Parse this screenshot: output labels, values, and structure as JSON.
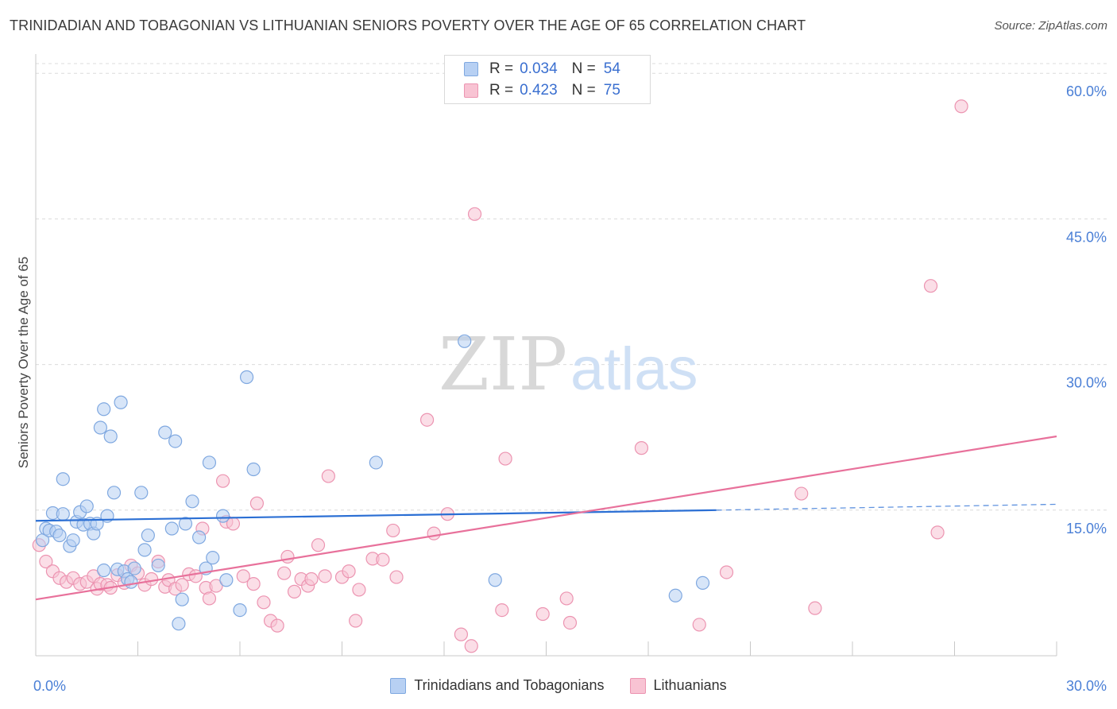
{
  "header": {
    "title": "TRINIDADIAN AND TOBAGONIAN VS LITHUANIAN SENIORS POVERTY OVER THE AGE OF 65 CORRELATION CHART",
    "source": "Source: ZipAtlas.com"
  },
  "watermark": {
    "zip": "ZIP",
    "atlas": "atlas"
  },
  "legend_top": {
    "rows": [
      {
        "r_label": "R =",
        "r_value": "0.034",
        "n_label": "N =",
        "n_value": "54"
      },
      {
        "r_label": "R =",
        "r_value": "0.423",
        "n_label": "N =",
        "n_value": "75"
      }
    ]
  },
  "colors": {
    "blue_fill": "#b7d0f3",
    "blue_stroke": "#7fa8e0",
    "blue_line": "#2b6fd4",
    "pink_fill": "#f8c3d3",
    "pink_stroke": "#ec94b1",
    "pink_line": "#e8719b",
    "tick_label": "#4a7fd6",
    "grid": "#dcdcdc"
  },
  "chart_data": {
    "type": "scatter",
    "title": "TRINIDADIAN AND TOBAGONIAN VS LITHUANIAN SENIORS POVERTY OVER THE AGE OF 65 CORRELATION CHART",
    "xlabel": "",
    "ylabel": "Seniors Poverty Over the Age of 65",
    "xlim": [
      0,
      30
    ],
    "ylim": [
      0,
      61
    ],
    "x_ticks": [
      0,
      3,
      6,
      9,
      12,
      15,
      18,
      21,
      24,
      27,
      30
    ],
    "x_tick_labels": [
      {
        "x": 0,
        "label": "0.0%"
      },
      {
        "x": 30,
        "label": "30.0%"
      }
    ],
    "y_ticks": [
      15,
      30,
      45,
      60
    ],
    "y_tick_labels": [
      "15.0%",
      "30.0%",
      "45.0%",
      "60.0%"
    ],
    "grid": true,
    "legend_placement": "bottom-center",
    "series": [
      {
        "name": "Trinidadians and Tobagonians",
        "r": 0.034,
        "n": 54,
        "trend": {
          "x_start": 0,
          "y_start": 13.9,
          "x_solid_end": 20.0,
          "y_solid_end": 15.0,
          "x_dash_end": 30,
          "y_dash_end": 15.6
        },
        "points": [
          [
            0.2,
            11.9
          ],
          [
            0.3,
            13.1
          ],
          [
            0.4,
            12.9
          ],
          [
            0.5,
            14.7
          ],
          [
            0.6,
            12.8
          ],
          [
            0.7,
            12.4
          ],
          [
            0.8,
            14.6
          ],
          [
            0.8,
            18.2
          ],
          [
            1.0,
            11.3
          ],
          [
            1.1,
            11.9
          ],
          [
            1.2,
            13.8
          ],
          [
            1.3,
            14.8
          ],
          [
            1.4,
            13.5
          ],
          [
            1.5,
            15.4
          ],
          [
            1.6,
            13.6
          ],
          [
            1.7,
            12.6
          ],
          [
            1.8,
            13.6
          ],
          [
            1.9,
            23.5
          ],
          [
            2.0,
            8.8
          ],
          [
            2.0,
            25.4
          ],
          [
            2.1,
            14.4
          ],
          [
            2.2,
            22.6
          ],
          [
            2.3,
            16.8
          ],
          [
            2.4,
            8.9
          ],
          [
            2.5,
            26.1
          ],
          [
            2.6,
            8.7
          ],
          [
            2.7,
            7.9
          ],
          [
            2.8,
            7.6
          ],
          [
            2.9,
            9.0
          ],
          [
            3.1,
            16.8
          ],
          [
            3.2,
            10.9
          ],
          [
            3.3,
            12.4
          ],
          [
            3.6,
            9.3
          ],
          [
            3.8,
            23.0
          ],
          [
            4.0,
            13.1
          ],
          [
            4.1,
            22.1
          ],
          [
            4.2,
            3.3
          ],
          [
            4.3,
            5.8
          ],
          [
            4.4,
            13.6
          ],
          [
            4.6,
            15.9
          ],
          [
            4.8,
            12.2
          ],
          [
            5.0,
            9.0
          ],
          [
            5.1,
            19.9
          ],
          [
            5.2,
            10.1
          ],
          [
            5.5,
            14.4
          ],
          [
            5.6,
            7.8
          ],
          [
            6.0,
            4.7
          ],
          [
            6.2,
            28.7
          ],
          [
            6.4,
            19.2
          ],
          [
            10.0,
            19.9
          ],
          [
            12.6,
            32.4
          ],
          [
            13.5,
            7.8
          ],
          [
            18.8,
            6.2
          ],
          [
            19.6,
            7.5
          ]
        ]
      },
      {
        "name": "Lithuanians",
        "r": 0.423,
        "n": 75,
        "trend": {
          "x_start": 0,
          "y_start": 5.8,
          "x_end": 30,
          "y_end": 22.6
        },
        "points": [
          [
            0.1,
            11.4
          ],
          [
            0.3,
            9.7
          ],
          [
            0.5,
            8.7
          ],
          [
            0.7,
            8.0
          ],
          [
            0.9,
            7.6
          ],
          [
            1.1,
            8.0
          ],
          [
            1.3,
            7.4
          ],
          [
            1.5,
            7.6
          ],
          [
            1.7,
            8.2
          ],
          [
            1.8,
            6.9
          ],
          [
            1.9,
            7.4
          ],
          [
            2.1,
            7.3
          ],
          [
            2.2,
            7.0
          ],
          [
            2.4,
            8.3
          ],
          [
            2.6,
            7.5
          ],
          [
            2.8,
            9.3
          ],
          [
            3.0,
            8.5
          ],
          [
            3.2,
            7.3
          ],
          [
            3.4,
            7.9
          ],
          [
            3.6,
            9.7
          ],
          [
            3.8,
            7.1
          ],
          [
            3.9,
            7.8
          ],
          [
            4.1,
            6.9
          ],
          [
            4.3,
            7.3
          ],
          [
            4.5,
            8.4
          ],
          [
            4.7,
            8.2
          ],
          [
            4.9,
            13.1
          ],
          [
            5.0,
            7.0
          ],
          [
            5.1,
            5.9
          ],
          [
            5.3,
            7.2
          ],
          [
            5.5,
            18.0
          ],
          [
            5.6,
            13.8
          ],
          [
            5.8,
            13.6
          ],
          [
            6.1,
            8.2
          ],
          [
            6.4,
            7.4
          ],
          [
            6.5,
            15.7
          ],
          [
            6.7,
            5.5
          ],
          [
            6.9,
            3.6
          ],
          [
            7.1,
            3.1
          ],
          [
            7.3,
            8.5
          ],
          [
            7.4,
            10.2
          ],
          [
            7.6,
            6.6
          ],
          [
            7.8,
            7.9
          ],
          [
            8.0,
            7.2
          ],
          [
            8.1,
            7.9
          ],
          [
            8.3,
            11.4
          ],
          [
            8.5,
            8.2
          ],
          [
            8.6,
            18.5
          ],
          [
            9.0,
            8.1
          ],
          [
            9.2,
            8.7
          ],
          [
            9.4,
            3.6
          ],
          [
            9.5,
            6.8
          ],
          [
            9.9,
            10.0
          ],
          [
            10.2,
            9.9
          ],
          [
            10.5,
            12.9
          ],
          [
            10.6,
            8.1
          ],
          [
            11.5,
            24.3
          ],
          [
            11.7,
            12.6
          ],
          [
            12.1,
            14.6
          ],
          [
            12.5,
            2.2
          ],
          [
            12.8,
            1.0
          ],
          [
            12.9,
            45.5
          ],
          [
            13.7,
            4.7
          ],
          [
            13.8,
            20.3
          ],
          [
            14.9,
            4.3
          ],
          [
            15.6,
            5.9
          ],
          [
            15.7,
            3.4
          ],
          [
            17.8,
            21.4
          ],
          [
            19.5,
            3.2
          ],
          [
            20.3,
            8.6
          ],
          [
            22.5,
            16.7
          ],
          [
            22.9,
            4.9
          ],
          [
            26.3,
            38.1
          ],
          [
            26.5,
            12.7
          ],
          [
            27.2,
            56.6
          ]
        ]
      }
    ]
  }
}
